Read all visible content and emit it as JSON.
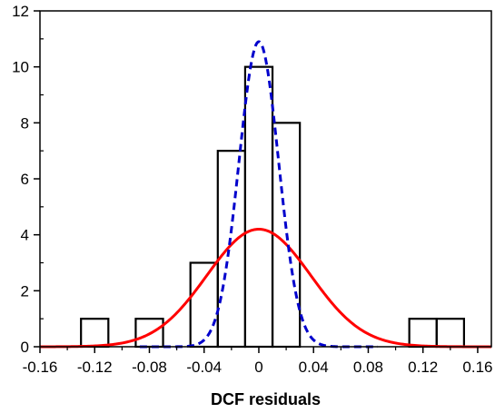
{
  "chart_data": {
    "type": "bar",
    "title": "",
    "xlabel": "DCF residuals",
    "ylabel": "",
    "xlim": [
      -0.16,
      0.17
    ],
    "ylim": [
      0,
      12
    ],
    "grid": false,
    "legend": "none",
    "x_ticks": [
      -0.16,
      -0.12,
      -0.08,
      -0.04,
      0,
      0.04,
      0.08,
      0.12,
      0.16
    ],
    "x_tick_labels": [
      "-0.16",
      "-0.12",
      "-0.08",
      "-0.04",
      "0",
      "0.04",
      "0.08",
      "0.12",
      "0.16"
    ],
    "y_ticks": [
      0,
      2,
      4,
      6,
      8,
      10,
      12
    ],
    "y_tick_labels": [
      "0",
      "2",
      "4",
      "6",
      "8",
      "10",
      "12"
    ],
    "histogram": {
      "bin_width": 0.02,
      "bin_centers": [
        -0.12,
        -0.08,
        -0.04,
        -0.02,
        0.0,
        0.02,
        0.12,
        0.14
      ],
      "counts": [
        1,
        1,
        3,
        7,
        10,
        8,
        1,
        1
      ],
      "edge_color": "#000000"
    },
    "curves": [
      {
        "style": "solid",
        "color": "#ff0000",
        "mean": 0.0,
        "sd": 0.038,
        "peak": 4.2
      },
      {
        "style": "dashed",
        "color": "#0000cc",
        "mean": 0.0,
        "sd": 0.0145,
        "peak": 10.9
      }
    ]
  }
}
